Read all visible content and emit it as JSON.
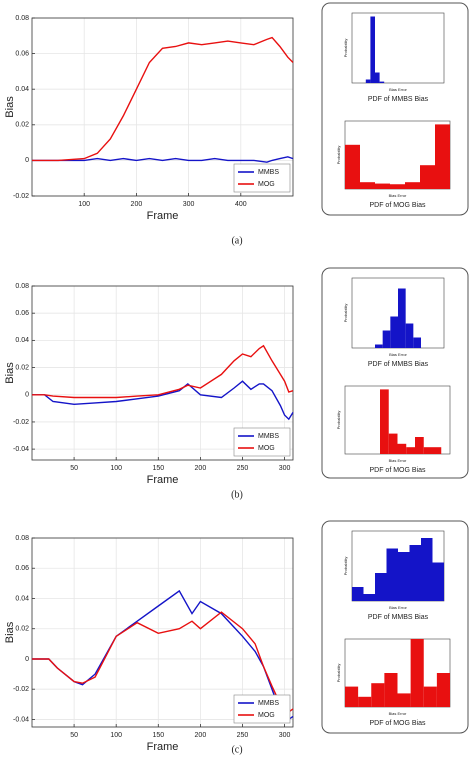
{
  "captions": [
    "(a)",
    "(b)",
    "(c)"
  ],
  "chart_data": [
    {
      "type": "line",
      "ylabel": "Bias",
      "xlabel": "Frame",
      "grid": true,
      "legend": "lower right",
      "xlim": [
        0,
        500
      ],
      "ylim": [
        -0.02,
        0.08
      ],
      "xticks": [
        100,
        200,
        300,
        400
      ],
      "yticks": [
        -0.02,
        0,
        0.02,
        0.04,
        0.06,
        0.08
      ],
      "x": [
        0,
        50,
        100,
        125,
        150,
        175,
        200,
        225,
        250,
        275,
        300,
        325,
        350,
        375,
        400,
        425,
        450,
        460,
        475,
        490,
        500
      ],
      "series": [
        {
          "name": "MMBS",
          "color": "#1414c8",
          "values": [
            0,
            0,
            0,
            0.001,
            0,
            0.001,
            0,
            0.001,
            0,
            0.001,
            0,
            0,
            0.001,
            0,
            0,
            0,
            -0.001,
            0,
            0.001,
            0.002,
            0.001
          ]
        },
        {
          "name": "MOG",
          "color": "#e81010",
          "values": [
            0,
            0,
            0.001,
            0.004,
            0.012,
            0.025,
            0.04,
            0.055,
            0.063,
            0.064,
            0.066,
            0.065,
            0.066,
            0.067,
            0.066,
            0.065,
            0.068,
            0.069,
            0.064,
            0.058,
            0.055
          ]
        }
      ]
    },
    {
      "type": "bar",
      "title": "PDF of MMBS Bias",
      "xlabel": "Bias Error",
      "ylabel": "Probability",
      "color": "#1414c8",
      "ylim": [
        0,
        1
      ],
      "values": [
        0,
        0,
        0,
        0.05,
        0.95,
        0.15,
        0.02,
        0,
        0,
        0,
        0,
        0,
        0,
        0,
        0,
        0,
        0,
        0,
        0,
        0
      ]
    },
    {
      "type": "bar",
      "title": "PDF of MOG Bias",
      "xlabel": "Bias Error",
      "ylabel": "Probability",
      "color": "#e81010",
      "ylim": [
        0,
        1
      ],
      "values": [
        0.65,
        0.1,
        0.08,
        0.07,
        0.1,
        0.35,
        0.95
      ]
    },
    {
      "type": "line",
      "ylabel": "Bias",
      "xlabel": "Frame",
      "grid": true,
      "legend": "lower right",
      "xlim": [
        0,
        310
      ],
      "ylim": [
        -0.048,
        0.08
      ],
      "xticks": [
        50,
        100,
        150,
        200,
        250,
        300
      ],
      "yticks": [
        -0.04,
        -0.02,
        0,
        0.02,
        0.04,
        0.06,
        0.08
      ],
      "x": [
        0,
        15,
        25,
        50,
        75,
        100,
        125,
        150,
        175,
        185,
        200,
        225,
        240,
        250,
        260,
        270,
        275,
        285,
        295,
        300,
        305,
        310
      ],
      "series": [
        {
          "name": "MMBS",
          "color": "#1414c8",
          "values": [
            0,
            0,
            -0.005,
            -0.007,
            -0.006,
            -0.005,
            -0.003,
            -0.001,
            0.003,
            0.008,
            0,
            -0.002,
            0.005,
            0.01,
            0.004,
            0.008,
            0.008,
            0.003,
            -0.008,
            -0.015,
            -0.018,
            -0.013
          ]
        },
        {
          "name": "MOG",
          "color": "#e81010",
          "values": [
            0,
            0,
            -0.001,
            -0.002,
            -0.002,
            -0.002,
            -0.001,
            0,
            0.004,
            0.007,
            0.005,
            0.015,
            0.025,
            0.03,
            0.028,
            0.034,
            0.036,
            0.025,
            0.015,
            0.01,
            0.002,
            0.003
          ]
        }
      ]
    },
    {
      "type": "bar",
      "title": "PDF of MMBS Bias",
      "xlabel": "Bias Error",
      "ylabel": "Probability",
      "color": "#1414c8",
      "ylim": [
        0,
        1
      ],
      "values": [
        0,
        0,
        0,
        0.05,
        0.25,
        0.45,
        0.85,
        0.35,
        0.15,
        0,
        0,
        0
      ]
    },
    {
      "type": "bar",
      "title": "PDF of MOG Bias",
      "xlabel": "Bias Error",
      "ylabel": "Probability",
      "color": "#e81010",
      "ylim": [
        0,
        1
      ],
      "values": [
        0,
        0,
        0,
        0,
        0.95,
        0.3,
        0.15,
        0.1,
        0.25,
        0.1,
        0.1,
        0
      ]
    },
    {
      "type": "line",
      "ylabel": "Bias",
      "xlabel": "Frame",
      "grid": true,
      "legend": "lower right",
      "xlim": [
        0,
        310
      ],
      "ylim": [
        -0.045,
        0.08
      ],
      "xticks": [
        50,
        100,
        150,
        200,
        250,
        300
      ],
      "yticks": [
        -0.04,
        -0.02,
        0,
        0.02,
        0.04,
        0.06,
        0.08
      ],
      "x": [
        0,
        20,
        30,
        50,
        60,
        75,
        100,
        125,
        150,
        175,
        190,
        200,
        225,
        250,
        265,
        275,
        285,
        295,
        300,
        305,
        310
      ],
      "series": [
        {
          "name": "MMBS",
          "color": "#1414c8",
          "values": [
            0,
            0,
            -0.006,
            -0.015,
            -0.017,
            -0.01,
            0.015,
            0.025,
            0.035,
            0.045,
            0.03,
            0.038,
            0.03,
            0.015,
            0.005,
            -0.005,
            -0.02,
            -0.035,
            -0.036,
            -0.04,
            -0.038
          ]
        },
        {
          "name": "MOG",
          "color": "#e81010",
          "values": [
            0,
            0,
            -0.006,
            -0.015,
            -0.016,
            -0.012,
            0.015,
            0.024,
            0.017,
            0.02,
            0.025,
            0.02,
            0.031,
            0.02,
            0.01,
            -0.005,
            -0.018,
            -0.03,
            -0.032,
            -0.035,
            -0.033
          ]
        }
      ]
    },
    {
      "type": "bar",
      "title": "PDF of MMBS Bias",
      "xlabel": "Bias Error",
      "ylabel": "Probability",
      "color": "#1414c8",
      "ylim": [
        0,
        1
      ],
      "values": [
        0.2,
        0.1,
        0.4,
        0.75,
        0.7,
        0.8,
        0.9,
        0.55
      ]
    },
    {
      "type": "bar",
      "title": "PDF of MOG Bias",
      "xlabel": "Bias Error",
      "ylabel": "Probability",
      "color": "#e81010",
      "ylim": [
        0,
        1
      ],
      "values": [
        0.3,
        0.15,
        0.35,
        0.5,
        0.2,
        1.0,
        0.3,
        0.5
      ]
    }
  ]
}
